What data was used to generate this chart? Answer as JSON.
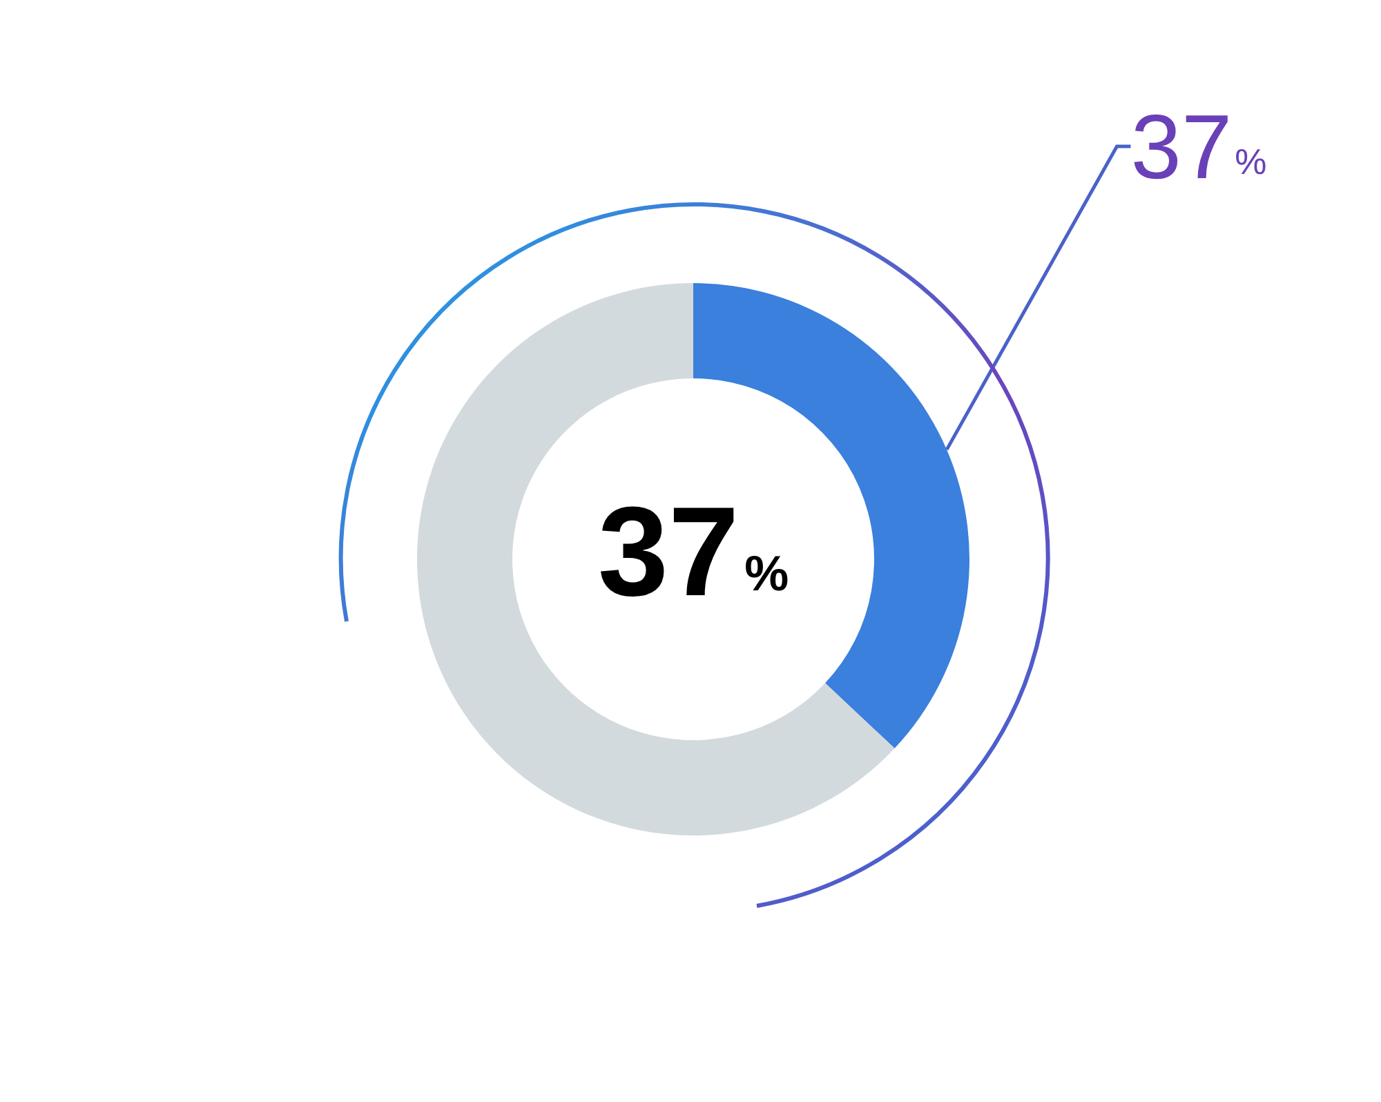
{
  "chart_data": {
    "type": "donut",
    "categories": [
      null,
      null
    ],
    "values": [
      37,
      63
    ],
    "colors": [
      "#3a80dc",
      "#d3dadd"
    ],
    "value_labels": [
      "37%",
      null
    ],
    "annotations": [
      "37%"
    ]
  }
}
